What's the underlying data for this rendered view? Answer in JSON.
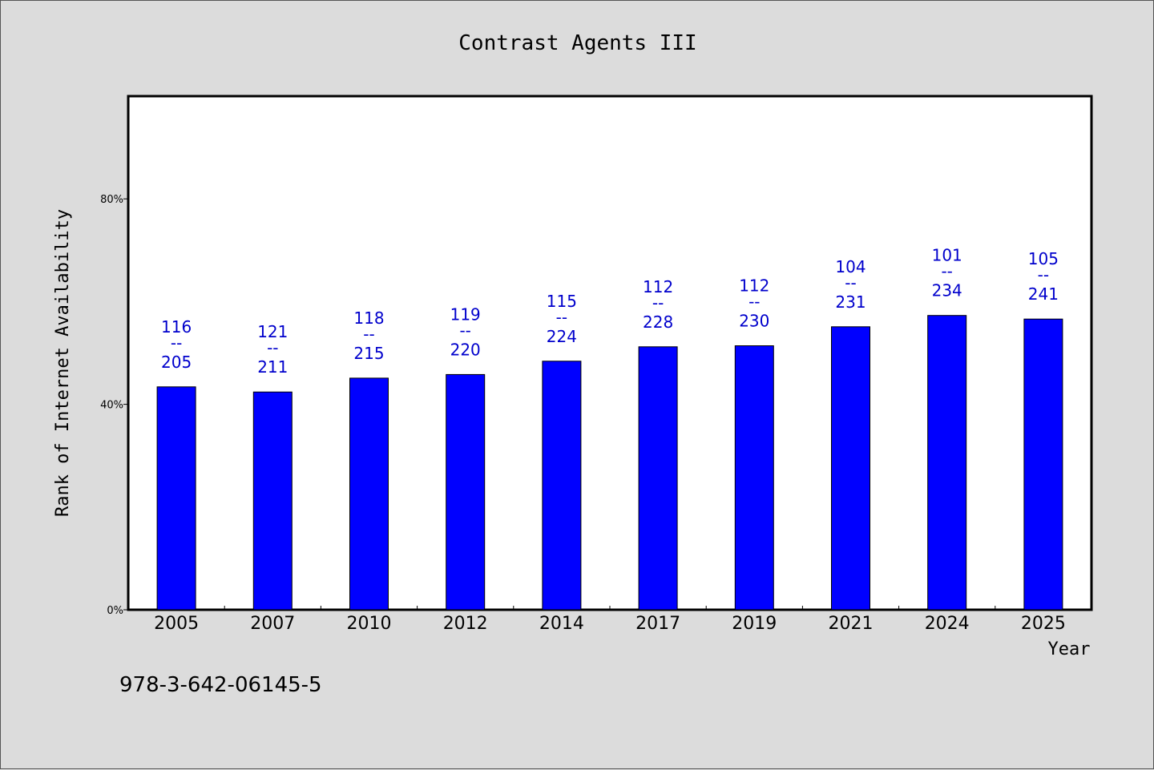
{
  "chart_data": {
    "type": "bar",
    "title": "Contrast Agents III",
    "xlabel": "Year",
    "ylabel": "Rank of Internet Availability",
    "categories": [
      "2005",
      "2007",
      "2010",
      "2012",
      "2014",
      "2017",
      "2019",
      "2021",
      "2024",
      "2025"
    ],
    "values": [
      43.4,
      42.4,
      45.1,
      45.8,
      48.4,
      51.2,
      51.4,
      55.1,
      57.3,
      56.6
    ],
    "labels_top": [
      "116",
      "121",
      "118",
      "119",
      "115",
      "112",
      "112",
      "104",
      "101",
      "105"
    ],
    "labels_sep": "--",
    "labels_bottom": [
      "205",
      "211",
      "215",
      "220",
      "224",
      "228",
      "230",
      "231",
      "234",
      "241"
    ],
    "ylim": [
      0,
      100
    ],
    "yticks": [
      0,
      40,
      80
    ],
    "ytick_labels": [
      "0%",
      "40%",
      "80%"
    ],
    "grid": false,
    "bar_color": "#0000ff",
    "label_color": "#0000cc"
  },
  "footnote": "978-3-642-06145-5"
}
